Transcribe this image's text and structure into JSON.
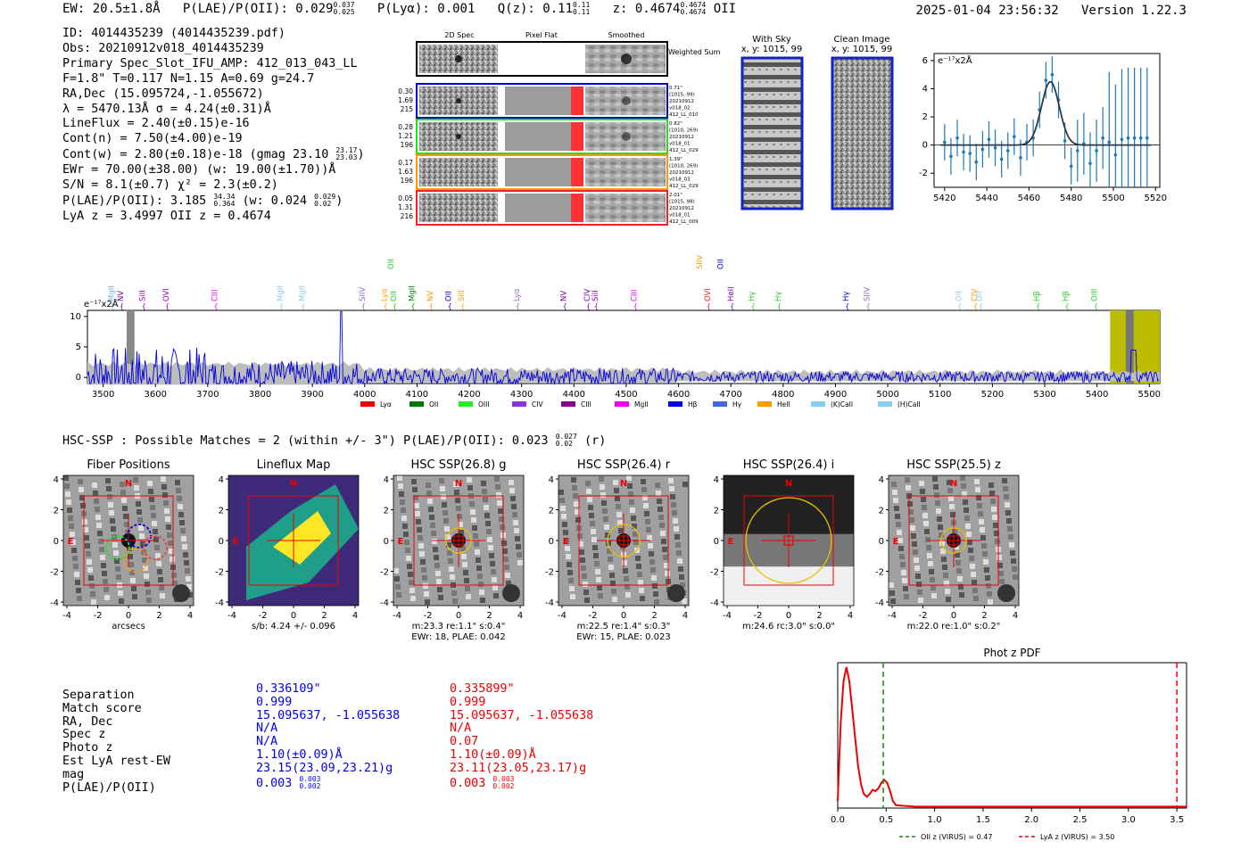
{
  "header": {
    "ew": "EW: 20.5±1.8Å",
    "plae": "P(LAE)/P(OII): 0.029",
    "plae_hi": "0.037",
    "plae_lo": "0.025",
    "plya": "P(Lyα): 0.001",
    "qz": "Q(z): 0.11",
    "qz_hi": "0.11",
    "qz_lo": "0.11",
    "z": "z: 0.4674",
    "z_hi": "0.4674",
    "z_lo": "0.4674",
    "line": "OII",
    "timestamp": "2025-01-04 23:56:32",
    "version": "Version 1.22.3"
  },
  "info": {
    "id": "ID: 4014435239 (4014435239.pdf)",
    "obs": "Obs: 20210912v018_4014435239",
    "slot": "Primary Spec_Slot_IFU_AMP: 412_013_043_LL",
    "fit": "F=1.8\"  T=0.117  N=1.15  A=0.69  g=24.7",
    "radec": "RA,Dec (15.095724,-1.055672)",
    "lambda": "λ = 5470.13Å  σ = 4.24(±0.31)Å",
    "lineflux": "LineFlux = 2.40(±0.15)e-16",
    "contn": "Cont(n) = 7.50(±4.00)e-19",
    "contw": "Cont(w) = 2.80(±0.18)e-18 (gmag 23.10",
    "contw_hi": "23.17",
    "contw_lo": "23.03",
    "contw_end": ")",
    "ewr": "EWr = 70.00(±38.00) (w: 19.00(±1.70))Å",
    "sn": "S/N = 8.1(±0.7)  χ² = 2.3(±0.2)",
    "plae": "P(LAE)/P(OII): 3.185",
    "plae_hi": "34.34",
    "plae_lo": "0.364",
    "plae_w": "(w: 0.024",
    "plae_w_hi": "0.029",
    "plae_w_lo": "0.02",
    "plae_w_end": ")",
    "lyaz": "LyA z = 3.4997  OII z = 0.4674"
  },
  "cutouts": {
    "headers": [
      "2D Spec",
      "Pixel Flat",
      "Smoothed"
    ],
    "weighted": "Weighted Sum",
    "rows": [
      {
        "n1": "0.30",
        "n2": "1.69",
        "n3": "215",
        "r1": "0.71\"",
        "r2": "(1015, 99)",
        "r3": "20210912",
        "r4": "v018_02",
        "r5": "412_LL_010",
        "color": "#0000cc"
      },
      {
        "n1": "0.28",
        "n2": "1.21",
        "n3": "196",
        "r1": "0.82\"",
        "r2": "(1010, 269)",
        "r3": "20210912",
        "r4": "v018_01",
        "r5": "412_LL_029",
        "color": "#22dd22"
      },
      {
        "n1": "0.17",
        "n2": "1.63",
        "n3": "196",
        "r1": "1.39\"",
        "r2": "(1010, 269)",
        "r3": "20210912",
        "r4": "v018_03",
        "r5": "412_LL_029",
        "color": "#ff9900"
      },
      {
        "n1": "0.05",
        "n2": "1.31",
        "n3": "216",
        "r1": "2.01\"",
        "r2": "(1015, 98)",
        "r3": "20210912",
        "r4": "v018_01",
        "r5": "412_LL_009",
        "color": "#ee2222"
      }
    ]
  },
  "sky": {
    "with_sky": "With Sky",
    "with_sky_xy": "x, y: 1015, 99",
    "clean": "Clean Image",
    "clean_xy": "x, y: 1015, 99"
  },
  "zoom_plot": {
    "unit": "e⁻¹⁷x2Å",
    "chart_data": {
      "type": "scatter",
      "x": [
        5420,
        5423,
        5426,
        5429,
        5432,
        5435,
        5438,
        5441,
        5444,
        5447,
        5450,
        5453,
        5456,
        5459,
        5462,
        5465,
        5468,
        5471,
        5474,
        5477,
        5480,
        5483,
        5486,
        5489,
        5492,
        5495,
        5498,
        5501,
        5504,
        5507,
        5510,
        5513,
        5516
      ],
      "y": [
        0.2,
        -0.8,
        0.5,
        -0.5,
        -0.6,
        -1.2,
        -0.3,
        0.4,
        -0.2,
        -1.0,
        -0.4,
        0.6,
        -0.9,
        0.2,
        0.5,
        2.5,
        4.6,
        5.0,
        3.2,
        0.3,
        -1.5,
        -0.4,
        0.1,
        -1.3,
        -0.4,
        0.5,
        0.2,
        -0.7,
        0.4,
        0.5,
        0.5,
        0.5,
        0.5
      ],
      "fit_peak": 4.5,
      "fit_center": 5470.13,
      "fit_sigma": 4.24,
      "xticks": [
        5420,
        5440,
        5460,
        5480,
        5500,
        5520
      ],
      "yticks": [
        -2,
        0,
        2,
        4,
        6
      ],
      "xlim": [
        5415,
        5522
      ],
      "ylim": [
        -3,
        6.5
      ]
    }
  },
  "full_spec": {
    "unit": "e⁻¹⁷x2Å",
    "chart_data": {
      "type": "line",
      "xlim": [
        3470,
        5520
      ],
      "ylim": [
        -1,
        11
      ],
      "xticks": [
        3500,
        3600,
        3700,
        3800,
        3900,
        4000,
        4100,
        4200,
        4300,
        4400,
        4500,
        4600,
        4700,
        4800,
        4900,
        5000,
        5100,
        5200,
        5300,
        5400,
        5500
      ],
      "yticks": [
        0,
        5,
        10
      ],
      "lines": [
        {
          "label": "MgII",
          "x": 3515,
          "color": "#6fb0e8"
        },
        {
          "label": "NV",
          "x": 3533,
          "color": "#7700aa"
        },
        {
          "label": "SiII",
          "x": 3575,
          "color": "#9900aa"
        },
        {
          "label": "OVI",
          "x": 3620,
          "color": "#9900aa"
        },
        {
          "label": "CIII",
          "x": 3713,
          "color": "#ee00ee"
        },
        {
          "label": "MgII",
          "x": 3838,
          "color": "#88ccee"
        },
        {
          "label": "MgII",
          "x": 3880,
          "color": "#88ccee"
        },
        {
          "label": "SIIV",
          "x": 3995,
          "color": "#9966cc"
        },
        {
          "label": "Lyα",
          "x": 4037,
          "color": "#ff9900"
        },
        {
          "label": "OII",
          "x": 4055,
          "color": "#22cc22"
        },
        {
          "label": "MgII",
          "x": 4090,
          "color": "#008800"
        },
        {
          "label": "NV",
          "x": 4125,
          "color": "#ff9900"
        },
        {
          "label": "OII",
          "x": 4160,
          "color": "#0000cc"
        },
        {
          "label": "SiII",
          "x": 4185,
          "color": "#ff9900"
        },
        {
          "label": "Lyα",
          "x": 4290,
          "color": "#9966cc"
        },
        {
          "label": "NV",
          "x": 4380,
          "color": "#7700aa"
        },
        {
          "label": "CIV",
          "x": 4425,
          "color": "#7700aa"
        },
        {
          "label": "SiII",
          "x": 4440,
          "color": "#9900aa"
        },
        {
          "label": "CIII",
          "x": 4515,
          "color": "#ee00ee"
        },
        {
          "label": "OVI",
          "x": 4655,
          "color": "#ee2222"
        },
        {
          "label": "HeII",
          "x": 4700,
          "color": "#7700aa"
        },
        {
          "label": "Hγ",
          "x": 4740,
          "color": "#22cc22"
        },
        {
          "label": "Hγ",
          "x": 4790,
          "color": "#22cc22"
        },
        {
          "label": "Hγ",
          "x": 4920,
          "color": "#0000cc"
        },
        {
          "label": "SIIV",
          "x": 4960,
          "color": "#9966cc"
        },
        {
          "label": "OII",
          "x": 5135,
          "color": "#88ccee"
        },
        {
          "label": "CIV",
          "x": 5165,
          "color": "#ff9900"
        },
        {
          "label": "OII",
          "x": 5175,
          "color": "#88ccee"
        },
        {
          "label": "Hβ",
          "x": 5285,
          "color": "#22cc22"
        },
        {
          "label": "Hβ",
          "x": 5340,
          "color": "#22cc22"
        },
        {
          "label": "OIII",
          "x": 5395,
          "color": "#22cc22"
        }
      ],
      "upper_labels": [
        {
          "label": "OII",
          "x": 4050,
          "color": "#22cc22"
        },
        {
          "label": "SIIV",
          "x": 4640,
          "color": "#ff9900"
        },
        {
          "label": "OII",
          "x": 4680,
          "color": "#0000cc"
        }
      ],
      "legend": [
        {
          "label": "Lyα",
          "color": "#ee0000"
        },
        {
          "label": "OII",
          "color": "#007700"
        },
        {
          "label": "OIII",
          "color": "#22ee22"
        },
        {
          "label": "CIV",
          "color": "#8833dd"
        },
        {
          "label": "CIII",
          "color": "#880088"
        },
        {
          "label": "MgII",
          "color": "#ee00ee"
        },
        {
          "label": "Hβ",
          "color": "#0000dd"
        },
        {
          "label": "Hγ",
          "color": "#4466dd"
        },
        {
          "label": "HeII",
          "color": "#ff9900"
        },
        {
          "label": "(K)CaII",
          "color": "#88ccee"
        },
        {
          "label": "(H)CaII",
          "color": "#88ccee"
        }
      ]
    }
  },
  "hsc_line": {
    "text": "HSC-SSP : Possible Matches = 2 (within +/- 3\")  P(LAE)/P(OII): 0.023",
    "hi": "0.027",
    "lo": "0.02",
    "end": "(r)"
  },
  "panels": [
    {
      "title": "Fiber Positions",
      "caption": "arcsecs",
      "caption2": ""
    },
    {
      "title": "Lineflux Map",
      "caption": "s/b: 4.24 +/- 0.096",
      "caption2": ""
    },
    {
      "title": "HSC SSP(26.8) g",
      "caption": "m:23.3  re:1.1\"  s:0.4\"",
      "caption2": "EWr: 18, PLAE: 0.042"
    },
    {
      "title": "HSC SSP(26.4) r",
      "caption": "m:22.5  re:1.4\"  s:0.3\"",
      "caption2": "EWr: 15, PLAE: 0.023"
    },
    {
      "title": "HSC SSP(26.4) i",
      "caption": "m:24.6 rc:3.0\"  s:0.0\"",
      "caption2": ""
    },
    {
      "title": "HSC SSP(25.5) z",
      "caption": "m:22.0  re:1.0\"  s:0.2\"",
      "caption2": ""
    }
  ],
  "panel_ticks": [
    "-4",
    "-2",
    "0",
    "2",
    "4"
  ],
  "panel_yticks": [
    "4",
    "2",
    "0",
    "-2",
    "-4"
  ],
  "match_table": {
    "labels": [
      "Separation",
      "Match score",
      "RA, Dec",
      "Spec z",
      "Photo z",
      "Est LyA rest-EW",
      "mag",
      "P(LAE)/P(OII)"
    ],
    "blue": [
      "0.336109\"",
      "0.999",
      "15.095637, -1.055638",
      "N/A",
      "N/A",
      "1.10(±0.09)Å",
      "23.15(23.09,23.21)g",
      "0.003"
    ],
    "blue_hi": "0.003",
    "blue_lo": "0.002",
    "red": [
      "0.335899\"",
      "0.999",
      "15.095637, -1.055638",
      "N/A",
      "0.07",
      "1.10(±0.09)Å",
      "23.11(23.05,23.17)g",
      "0.003"
    ],
    "red_hi": "0.003",
    "red_lo": "0.002"
  },
  "photz": {
    "title": "Phot z PDF",
    "legend_oii": "OII z (VIRUS) = 0.47",
    "legend_lya": "LyA z (VIRUS) = 3.50",
    "chart_data": {
      "type": "line",
      "x": [
        0.0,
        0.03,
        0.06,
        0.09,
        0.12,
        0.15,
        0.18,
        0.21,
        0.24,
        0.27,
        0.3,
        0.33,
        0.36,
        0.39,
        0.42,
        0.45,
        0.48,
        0.51,
        0.54,
        0.57,
        0.6,
        0.8,
        1.0,
        1.5,
        2.0,
        2.5,
        3.0,
        3.5,
        3.6
      ],
      "y": [
        0.05,
        0.6,
        0.9,
        1.0,
        0.9,
        0.7,
        0.5,
        0.3,
        0.17,
        0.1,
        0.08,
        0.1,
        0.13,
        0.12,
        0.14,
        0.18,
        0.2,
        0.18,
        0.12,
        0.05,
        0.02,
        0.01,
        0.01,
        0.01,
        0.01,
        0.01,
        0.01,
        0.01,
        0.01
      ],
      "oii_z": 0.47,
      "lya_z": 3.5,
      "xticks": [
        "0.0",
        "0.5",
        "1.0",
        "1.5",
        "2.0",
        "2.5",
        "3.0",
        "3.5"
      ],
      "xlim": [
        0,
        3.6
      ]
    }
  }
}
